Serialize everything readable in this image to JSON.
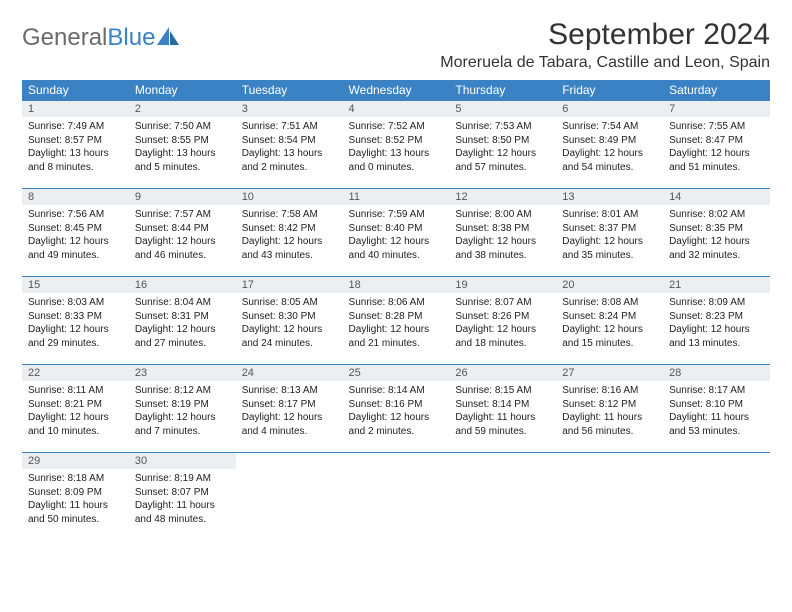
{
  "logo": {
    "text1": "General",
    "text2": "Blue"
  },
  "title": "September 2024",
  "location": "Moreruela de Tabara, Castille and Leon, Spain",
  "colors": {
    "header_bg": "#3b82c4",
    "daynum_bg": "#eceff1",
    "row_border": "#3b82c4",
    "page_bg": "#ffffff",
    "logo_gray": "#6a6a6a",
    "logo_blue": "#3b82c4"
  },
  "dayHeaders": [
    "Sunday",
    "Monday",
    "Tuesday",
    "Wednesday",
    "Thursday",
    "Friday",
    "Saturday"
  ],
  "weeks": [
    [
      {
        "n": "1",
        "sr": "7:49 AM",
        "ss": "8:57 PM",
        "dl": "13 hours and 8 minutes."
      },
      {
        "n": "2",
        "sr": "7:50 AM",
        "ss": "8:55 PM",
        "dl": "13 hours and 5 minutes."
      },
      {
        "n": "3",
        "sr": "7:51 AM",
        "ss": "8:54 PM",
        "dl": "13 hours and 2 minutes."
      },
      {
        "n": "4",
        "sr": "7:52 AM",
        "ss": "8:52 PM",
        "dl": "13 hours and 0 minutes."
      },
      {
        "n": "5",
        "sr": "7:53 AM",
        "ss": "8:50 PM",
        "dl": "12 hours and 57 minutes."
      },
      {
        "n": "6",
        "sr": "7:54 AM",
        "ss": "8:49 PM",
        "dl": "12 hours and 54 minutes."
      },
      {
        "n": "7",
        "sr": "7:55 AM",
        "ss": "8:47 PM",
        "dl": "12 hours and 51 minutes."
      }
    ],
    [
      {
        "n": "8",
        "sr": "7:56 AM",
        "ss": "8:45 PM",
        "dl": "12 hours and 49 minutes."
      },
      {
        "n": "9",
        "sr": "7:57 AM",
        "ss": "8:44 PM",
        "dl": "12 hours and 46 minutes."
      },
      {
        "n": "10",
        "sr": "7:58 AM",
        "ss": "8:42 PM",
        "dl": "12 hours and 43 minutes."
      },
      {
        "n": "11",
        "sr": "7:59 AM",
        "ss": "8:40 PM",
        "dl": "12 hours and 40 minutes."
      },
      {
        "n": "12",
        "sr": "8:00 AM",
        "ss": "8:38 PM",
        "dl": "12 hours and 38 minutes."
      },
      {
        "n": "13",
        "sr": "8:01 AM",
        "ss": "8:37 PM",
        "dl": "12 hours and 35 minutes."
      },
      {
        "n": "14",
        "sr": "8:02 AM",
        "ss": "8:35 PM",
        "dl": "12 hours and 32 minutes."
      }
    ],
    [
      {
        "n": "15",
        "sr": "8:03 AM",
        "ss": "8:33 PM",
        "dl": "12 hours and 29 minutes."
      },
      {
        "n": "16",
        "sr": "8:04 AM",
        "ss": "8:31 PM",
        "dl": "12 hours and 27 minutes."
      },
      {
        "n": "17",
        "sr": "8:05 AM",
        "ss": "8:30 PM",
        "dl": "12 hours and 24 minutes."
      },
      {
        "n": "18",
        "sr": "8:06 AM",
        "ss": "8:28 PM",
        "dl": "12 hours and 21 minutes."
      },
      {
        "n": "19",
        "sr": "8:07 AM",
        "ss": "8:26 PM",
        "dl": "12 hours and 18 minutes."
      },
      {
        "n": "20",
        "sr": "8:08 AM",
        "ss": "8:24 PM",
        "dl": "12 hours and 15 minutes."
      },
      {
        "n": "21",
        "sr": "8:09 AM",
        "ss": "8:23 PM",
        "dl": "12 hours and 13 minutes."
      }
    ],
    [
      {
        "n": "22",
        "sr": "8:11 AM",
        "ss": "8:21 PM",
        "dl": "12 hours and 10 minutes."
      },
      {
        "n": "23",
        "sr": "8:12 AM",
        "ss": "8:19 PM",
        "dl": "12 hours and 7 minutes."
      },
      {
        "n": "24",
        "sr": "8:13 AM",
        "ss": "8:17 PM",
        "dl": "12 hours and 4 minutes."
      },
      {
        "n": "25",
        "sr": "8:14 AM",
        "ss": "8:16 PM",
        "dl": "12 hours and 2 minutes."
      },
      {
        "n": "26",
        "sr": "8:15 AM",
        "ss": "8:14 PM",
        "dl": "11 hours and 59 minutes."
      },
      {
        "n": "27",
        "sr": "8:16 AM",
        "ss": "8:12 PM",
        "dl": "11 hours and 56 minutes."
      },
      {
        "n": "28",
        "sr": "8:17 AM",
        "ss": "8:10 PM",
        "dl": "11 hours and 53 minutes."
      }
    ],
    [
      {
        "n": "29",
        "sr": "8:18 AM",
        "ss": "8:09 PM",
        "dl": "11 hours and 50 minutes."
      },
      {
        "n": "30",
        "sr": "8:19 AM",
        "ss": "8:07 PM",
        "dl": "11 hours and 48 minutes."
      },
      null,
      null,
      null,
      null,
      null
    ]
  ],
  "labels": {
    "sunrise": "Sunrise: ",
    "sunset": "Sunset: ",
    "daylight": "Daylight: "
  }
}
